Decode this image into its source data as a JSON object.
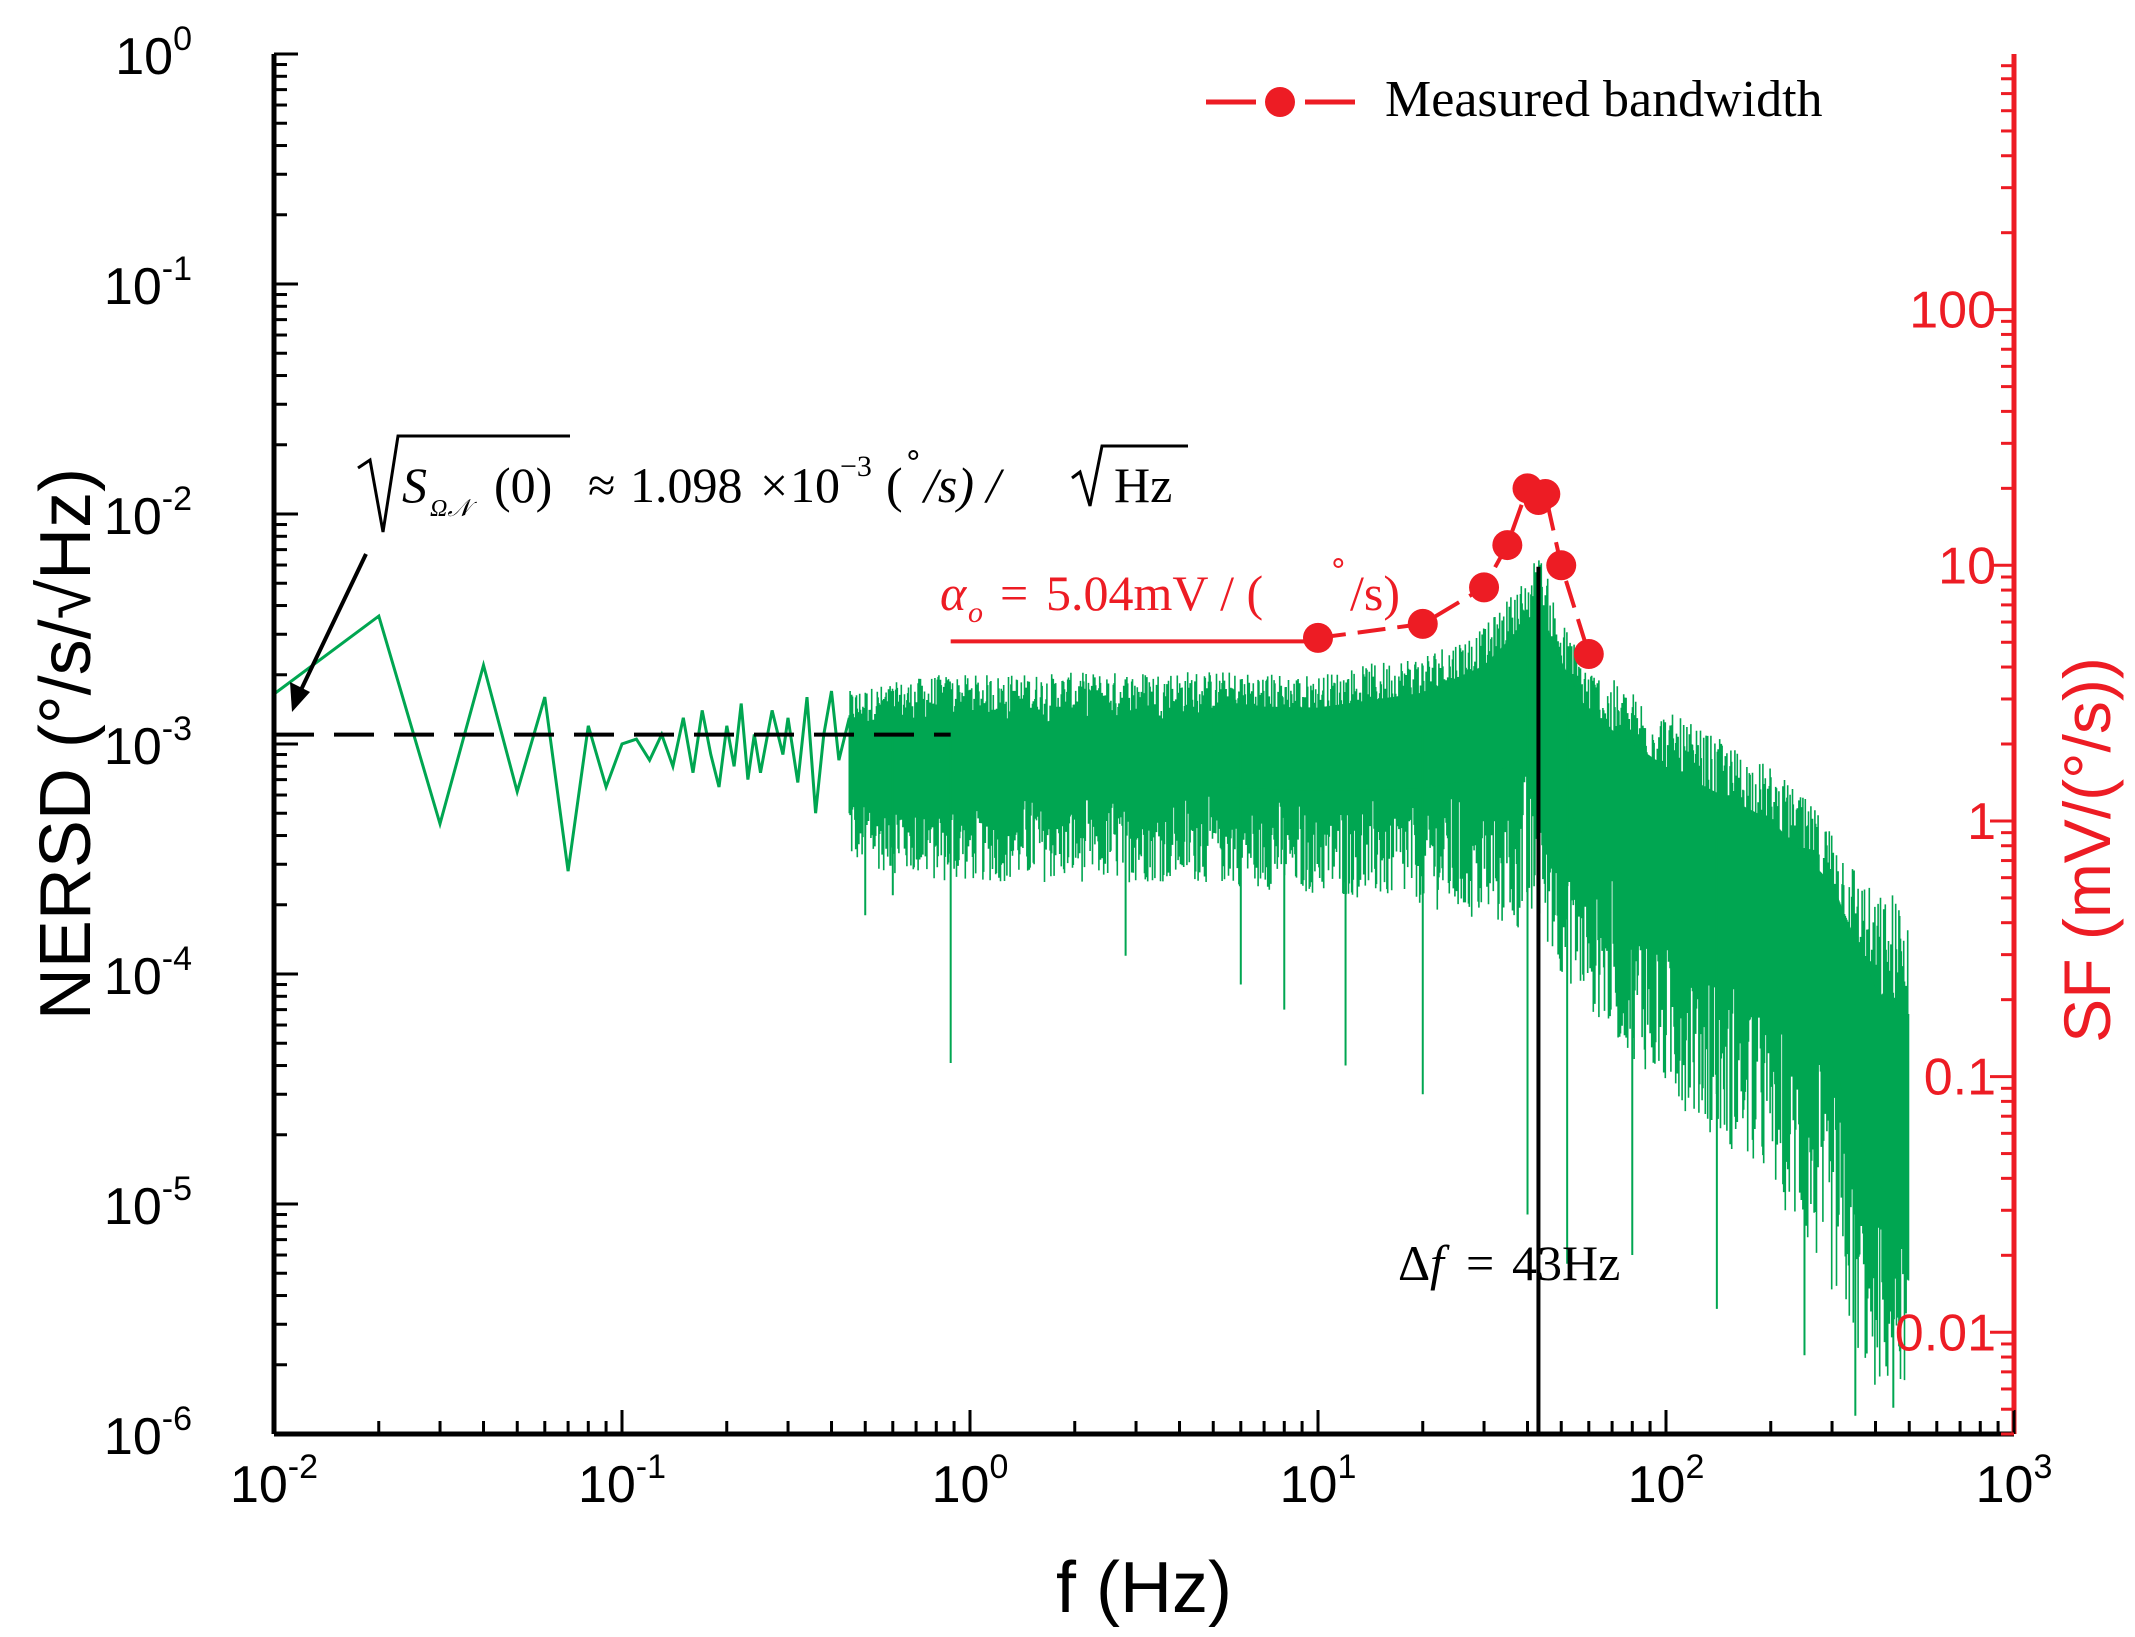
{
  "chart_data": {
    "type": "line",
    "title": "",
    "xlabel": "f (Hz)",
    "ylabel_left": "NERSD (°/s/√Hz)",
    "ylabel_right": "SF (mV/(°/s))",
    "x_scale": "log",
    "xlim": [
      0.01,
      1000
    ],
    "ylim_left": [
      1e-06,
      1
    ],
    "ylim_right": [
      0.004,
      1000
    ],
    "x_ticks": [
      {
        "value": 0.01,
        "base": "10",
        "exp": "-2"
      },
      {
        "value": 0.1,
        "base": "10",
        "exp": "-1"
      },
      {
        "value": 1,
        "base": "10",
        "exp": "0"
      },
      {
        "value": 10,
        "base": "10",
        "exp": "1"
      },
      {
        "value": 100,
        "base": "10",
        "exp": "2"
      },
      {
        "value": 1000,
        "base": "10",
        "exp": "3"
      }
    ],
    "y_left_ticks": [
      {
        "value": 1,
        "base": "10",
        "exp": "0"
      },
      {
        "value": 0.1,
        "base": "10",
        "exp": "-1"
      },
      {
        "value": 0.01,
        "base": "10",
        "exp": "-2"
      },
      {
        "value": 0.001,
        "base": "10",
        "exp": "-3"
      },
      {
        "value": 0.0001,
        "base": "10",
        "exp": "-4"
      },
      {
        "value": 1e-05,
        "base": "10",
        "exp": "-5"
      },
      {
        "value": 1e-06,
        "base": "10",
        "exp": "-6"
      }
    ],
    "y_right_ticks": [
      {
        "value": 100,
        "label": "100"
      },
      {
        "value": 10,
        "label": "10"
      },
      {
        "value": 1,
        "label": "1"
      },
      {
        "value": 0.1,
        "label": "0.1"
      },
      {
        "value": 0.01,
        "label": "0.01"
      }
    ],
    "series": [
      {
        "name": "NERSD",
        "axis": "left",
        "color": "#00a651",
        "sparse_points": [
          [
            0.01,
            0.00165
          ],
          [
            0.02,
            0.0036
          ],
          [
            0.03,
            0.00045
          ],
          [
            0.04,
            0.0022
          ],
          [
            0.05,
            0.00062
          ],
          [
            0.06,
            0.0016
          ],
          [
            0.07,
            0.00028
          ],
          [
            0.08,
            0.0012
          ],
          [
            0.09,
            0.00065
          ],
          [
            0.1,
            0.001
          ],
          [
            0.11,
            0.00105
          ],
          [
            0.12,
            0.00085
          ],
          [
            0.13,
            0.0011
          ],
          [
            0.14,
            0.0008
          ],
          [
            0.15,
            0.0013
          ],
          [
            0.16,
            0.00075
          ],
          [
            0.17,
            0.0014
          ],
          [
            0.18,
            0.0009
          ],
          [
            0.19,
            0.00065
          ],
          [
            0.2,
            0.0012
          ],
          [
            0.21,
            0.0008
          ],
          [
            0.22,
            0.0015
          ],
          [
            0.23,
            0.0007
          ],
          [
            0.24,
            0.0011
          ],
          [
            0.25,
            0.00075
          ],
          [
            0.27,
            0.0014
          ],
          [
            0.29,
            0.0009
          ],
          [
            0.3,
            0.0013
          ],
          [
            0.32,
            0.00068
          ],
          [
            0.34,
            0.0016
          ],
          [
            0.36,
            0.0005
          ],
          [
            0.38,
            0.0011
          ],
          [
            0.4,
            0.0017
          ],
          [
            0.42,
            0.00085
          ],
          [
            0.45,
            0.0013
          ]
        ],
        "band_profile": [
          {
            "f": 0.45,
            "center": 0.0011,
            "low": 0.0003,
            "high": 0.0017
          },
          {
            "f": 0.8,
            "center": 0.0011,
            "low": 0.00025,
            "high": 0.002
          },
          {
            "f": 1,
            "center": 0.0011,
            "low": 0.00025,
            "high": 0.002
          },
          {
            "f": 4.5,
            "center": 0.0011,
            "low": 0.00025,
            "high": 0.0021
          },
          {
            "f": 10,
            "center": 0.0011,
            "low": 0.00022,
            "high": 0.002
          },
          {
            "f": 20,
            "center": 0.0012,
            "low": 0.0002,
            "high": 0.0025
          },
          {
            "f": 30,
            "center": 0.0016,
            "low": 0.00016,
            "high": 0.0032
          },
          {
            "f": 40,
            "center": 0.0023,
            "low": 0.00015,
            "high": 0.0055
          },
          {
            "f": 43,
            "center": 0.0025,
            "low": 0.00015,
            "high": 0.007
          },
          {
            "f": 50,
            "center": 0.0016,
            "low": 0.0001,
            "high": 0.0035
          },
          {
            "f": 60,
            "center": 0.0009,
            "low": 7e-05,
            "high": 0.0022
          },
          {
            "f": 100,
            "center": 0.0005,
            "low": 3e-05,
            "high": 0.0014
          },
          {
            "f": 200,
            "center": 0.0003,
            "low": 1.2e-05,
            "high": 0.0008
          },
          {
            "f": 300,
            "center": 0.00015,
            "low": 4e-06,
            "high": 0.00045
          },
          {
            "f": 400,
            "center": 4e-05,
            "low": 1.5e-06,
            "high": 0.00022
          },
          {
            "f": 500,
            "center": 2e-05,
            "low": 1.7e-06,
            "high": 0.00025
          }
        ],
        "outlier_dips": [
          [
            0.5,
            0.00018
          ],
          [
            0.6,
            0.00022
          ],
          [
            0.88,
            4.1e-05
          ],
          [
            2.8,
            0.00012
          ],
          [
            6,
            9e-05
          ],
          [
            8,
            7e-05
          ],
          [
            12,
            4e-05
          ],
          [
            20,
            3e-05
          ],
          [
            40,
            9e-06
          ],
          [
            52,
            5.5e-06
          ],
          [
            80,
            6e-06
          ],
          [
            140,
            3.5e-06
          ],
          [
            250,
            2.2e-06
          ],
          [
            350,
            1.2e-06
          ],
          [
            450,
            1.3e-06
          ]
        ]
      },
      {
        "name": "Measured bandwidth",
        "axis": "right",
        "color": "#ed1c24",
        "x": [
          10,
          20,
          30,
          35,
          40,
          43,
          45,
          50,
          60
        ],
        "values": [
          5.2,
          5.9,
          8.2,
          12,
          20,
          18,
          19,
          10,
          4.5
        ]
      }
    ],
    "reference_lines": {
      "noise_floor": {
        "value": 0.001098,
        "from": 0.01,
        "to": 0.88,
        "style": "dashed",
        "color": "#000000"
      },
      "sf_level": {
        "value": 5.04,
        "from": 0.88,
        "to": 10,
        "color": "#ed1c24"
      },
      "bandwidth_marker": {
        "x": 43,
        "color": "#000000"
      }
    },
    "annotations": {
      "noise_formula": {
        "s_symbol": "S",
        "s_subscript": "Ω𝒩",
        "arg": "(0)",
        "approx": "≈",
        "coefficient": "1.098",
        "times": "×",
        "base": "10",
        "exp": "−3",
        "unit_open": "(",
        "degree": "˚",
        "unit_close": "/s) /",
        "unit_tail": "Hz"
      },
      "sf_formula": {
        "alpha": "α",
        "alpha_sub": "o",
        "equals": "=",
        "value": "5.04mV / (",
        "degree": "˚",
        "tail": "/s)"
      },
      "bandwidth_label": {
        "delta": "Δ",
        "f": "f",
        "equals": "=",
        "value": "43Hz"
      }
    },
    "legend": {
      "label": "Measured bandwidth",
      "location": "top-right"
    }
  }
}
